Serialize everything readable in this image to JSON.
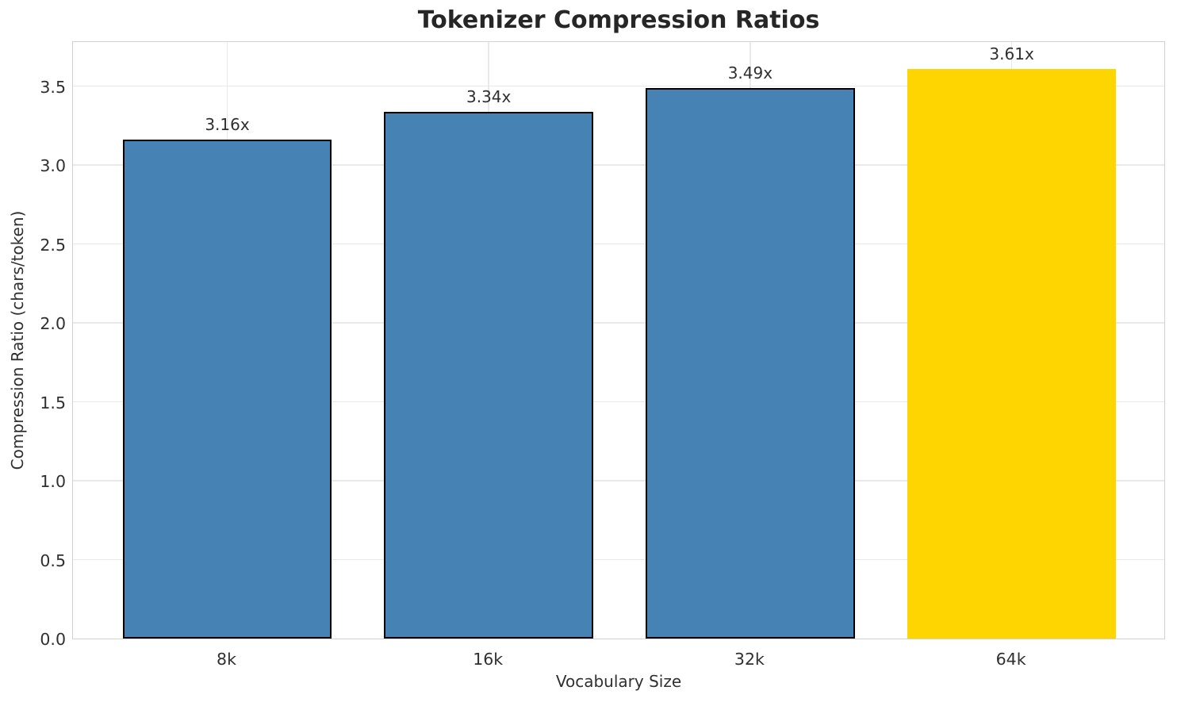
{
  "chart_data": {
    "type": "bar",
    "title": "Tokenizer Compression Ratios",
    "xlabel": "Vocabulary Size",
    "ylabel": "Compression Ratio (chars/token)",
    "categories": [
      "8k",
      "16k",
      "32k",
      "64k"
    ],
    "values": [
      3.16,
      3.34,
      3.49,
      3.61
    ],
    "bar_labels": [
      "3.16x",
      "3.34x",
      "3.49x",
      "3.61x"
    ],
    "bar_colors": [
      "#4682b4",
      "#4682b4",
      "#4682b4",
      "#ffd500"
    ],
    "bar_edge_colors": [
      "#000000",
      "#000000",
      "#000000",
      "none"
    ],
    "highlight_category": "64k",
    "yticks": [
      "0.0",
      "0.5",
      "1.0",
      "1.5",
      "2.0",
      "2.5",
      "3.0",
      "3.5"
    ],
    "ylim": [
      0,
      3.79
    ],
    "grid": true,
    "legend_position": "none"
  },
  "colors": {
    "bar_default": "#4682b4",
    "bar_highlight": "#ffd500",
    "bar_edge": "#000000",
    "grid": "#e9e9e9",
    "spine": "#d2d2d2",
    "title_text": "#262626",
    "axis_text": "#303030",
    "background": "#ffffff"
  }
}
